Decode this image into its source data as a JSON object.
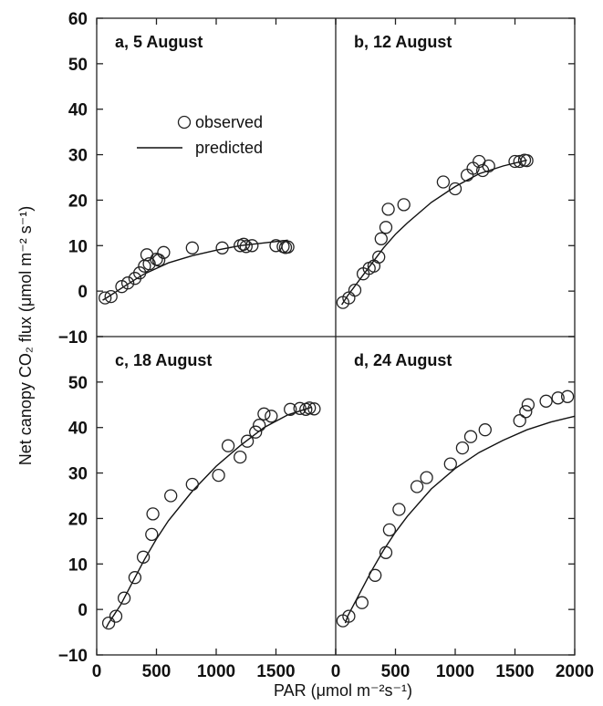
{
  "chart_data": {
    "type": "scatter",
    "layout": "2x2 panels sharing axes",
    "xlabel": "PAR (μmol m⁻²s⁻¹)",
    "ylabel": "Net canopy CO₂ flux (μmol m⁻² s⁻¹)",
    "x_ticks": [
      "0",
      "500",
      "1000",
      "1500",
      "0",
      "500",
      "1000",
      "1500",
      "2000"
    ],
    "y_ticks_top": [
      "−10",
      "0",
      "10",
      "20",
      "30",
      "40",
      "50",
      "60"
    ],
    "y_ticks_bottom": [
      "−10",
      "0",
      "10",
      "20",
      "30",
      "40",
      "50"
    ],
    "legend": {
      "observed": "observed",
      "predicted": "predicted",
      "placement": "inside panel a"
    },
    "grid": false,
    "panels": [
      {
        "title": "a, 5 August",
        "xlim": [
          0,
          2000
        ],
        "ylim": [
          -10,
          60
        ],
        "observed": [
          [
            70,
            -1.5
          ],
          [
            120,
            -1.2
          ],
          [
            210,
            1.0
          ],
          [
            260,
            1.8
          ],
          [
            320,
            2.8
          ],
          [
            360,
            4.0
          ],
          [
            400,
            5.5
          ],
          [
            420,
            8.0
          ],
          [
            440,
            6.0
          ],
          [
            500,
            7.0
          ],
          [
            520,
            6.8
          ],
          [
            560,
            8.5
          ],
          [
            800,
            9.5
          ],
          [
            1050,
            9.5
          ],
          [
            1200,
            10.0
          ],
          [
            1230,
            10.3
          ],
          [
            1250,
            9.8
          ],
          [
            1300,
            10.0
          ],
          [
            1500,
            10.0
          ],
          [
            1560,
            9.8
          ],
          [
            1580,
            9.6
          ],
          [
            1600,
            9.7
          ]
        ],
        "predicted": [
          [
            50,
            -2.0
          ],
          [
            100,
            -1.2
          ],
          [
            200,
            0.5
          ],
          [
            300,
            2.2
          ],
          [
            400,
            3.8
          ],
          [
            500,
            5.0
          ],
          [
            600,
            6.2
          ],
          [
            800,
            7.8
          ],
          [
            1000,
            9.0
          ],
          [
            1200,
            10.0
          ],
          [
            1400,
            10.6
          ],
          [
            1600,
            11.2
          ]
        ]
      },
      {
        "title": "b, 12 August",
        "xlim": [
          0,
          2000
        ],
        "ylim": [
          -10,
          60
        ],
        "observed": [
          [
            60,
            -2.5
          ],
          [
            110,
            -1.5
          ],
          [
            160,
            0.2
          ],
          [
            230,
            3.8
          ],
          [
            280,
            5.0
          ],
          [
            320,
            5.5
          ],
          [
            360,
            7.5
          ],
          [
            380,
            11.5
          ],
          [
            420,
            14.0
          ],
          [
            440,
            18.0
          ],
          [
            570,
            19.0
          ],
          [
            900,
            24.0
          ],
          [
            1000,
            22.5
          ],
          [
            1100,
            25.5
          ],
          [
            1150,
            27.0
          ],
          [
            1200,
            28.5
          ],
          [
            1230,
            26.5
          ],
          [
            1280,
            27.5
          ],
          [
            1500,
            28.5
          ],
          [
            1540,
            28.5
          ],
          [
            1580,
            28.8
          ],
          [
            1600,
            28.7
          ]
        ],
        "predicted": [
          [
            50,
            -3.0
          ],
          [
            100,
            -1.0
          ],
          [
            200,
            2.5
          ],
          [
            300,
            6.0
          ],
          [
            400,
            9.5
          ],
          [
            500,
            12.5
          ],
          [
            600,
            15.0
          ],
          [
            800,
            19.5
          ],
          [
            1000,
            23.0
          ],
          [
            1200,
            25.8
          ],
          [
            1400,
            27.5
          ],
          [
            1600,
            28.8
          ]
        ]
      },
      {
        "title": "c, 18 August",
        "xlim": [
          0,
          2000
        ],
        "ylim": [
          -10,
          60
        ],
        "observed": [
          [
            100,
            -3.0
          ],
          [
            160,
            -1.5
          ],
          [
            230,
            2.5
          ],
          [
            320,
            7.0
          ],
          [
            390,
            11.5
          ],
          [
            460,
            16.5
          ],
          [
            470,
            21.0
          ],
          [
            620,
            25.0
          ],
          [
            800,
            27.5
          ],
          [
            1020,
            29.5
          ],
          [
            1100,
            36.0
          ],
          [
            1200,
            33.5
          ],
          [
            1260,
            37.0
          ],
          [
            1330,
            39.0
          ],
          [
            1360,
            40.5
          ],
          [
            1400,
            43.0
          ],
          [
            1460,
            42.5
          ],
          [
            1620,
            44.0
          ],
          [
            1700,
            44.2
          ],
          [
            1750,
            44.0
          ],
          [
            1780,
            44.3
          ],
          [
            1820,
            44.1
          ]
        ],
        "predicted": [
          [
            80,
            -4.0
          ],
          [
            100,
            -3.0
          ],
          [
            200,
            1.0
          ],
          [
            300,
            6.0
          ],
          [
            400,
            11.0
          ],
          [
            500,
            15.5
          ],
          [
            600,
            19.5
          ],
          [
            800,
            26.0
          ],
          [
            1000,
            31.5
          ],
          [
            1200,
            36.0
          ],
          [
            1400,
            40.0
          ],
          [
            1600,
            42.8
          ],
          [
            1800,
            44.5
          ]
        ]
      },
      {
        "title": "d, 24 August",
        "xlim": [
          0,
          2000
        ],
        "ylim": [
          -10,
          60
        ],
        "observed": [
          [
            60,
            -2.5
          ],
          [
            110,
            -1.5
          ],
          [
            220,
            1.5
          ],
          [
            330,
            7.5
          ],
          [
            420,
            12.5
          ],
          [
            450,
            17.5
          ],
          [
            530,
            22.0
          ],
          [
            680,
            27.0
          ],
          [
            760,
            29.0
          ],
          [
            960,
            32.0
          ],
          [
            1060,
            35.5
          ],
          [
            1130,
            38.0
          ],
          [
            1250,
            39.5
          ],
          [
            1540,
            41.5
          ],
          [
            1590,
            43.5
          ],
          [
            1610,
            45.0
          ],
          [
            1760,
            45.8
          ],
          [
            1860,
            46.5
          ],
          [
            1940,
            46.8
          ]
        ],
        "predicted": [
          [
            80,
            -3.0
          ],
          [
            100,
            -1.5
          ],
          [
            200,
            3.5
          ],
          [
            300,
            8.5
          ],
          [
            400,
            13.0
          ],
          [
            500,
            17.0
          ],
          [
            600,
            20.5
          ],
          [
            800,
            26.5
          ],
          [
            1000,
            31.0
          ],
          [
            1200,
            34.5
          ],
          [
            1400,
            37.2
          ],
          [
            1600,
            39.5
          ],
          [
            1800,
            41.2
          ],
          [
            2000,
            42.5
          ]
        ]
      }
    ]
  }
}
